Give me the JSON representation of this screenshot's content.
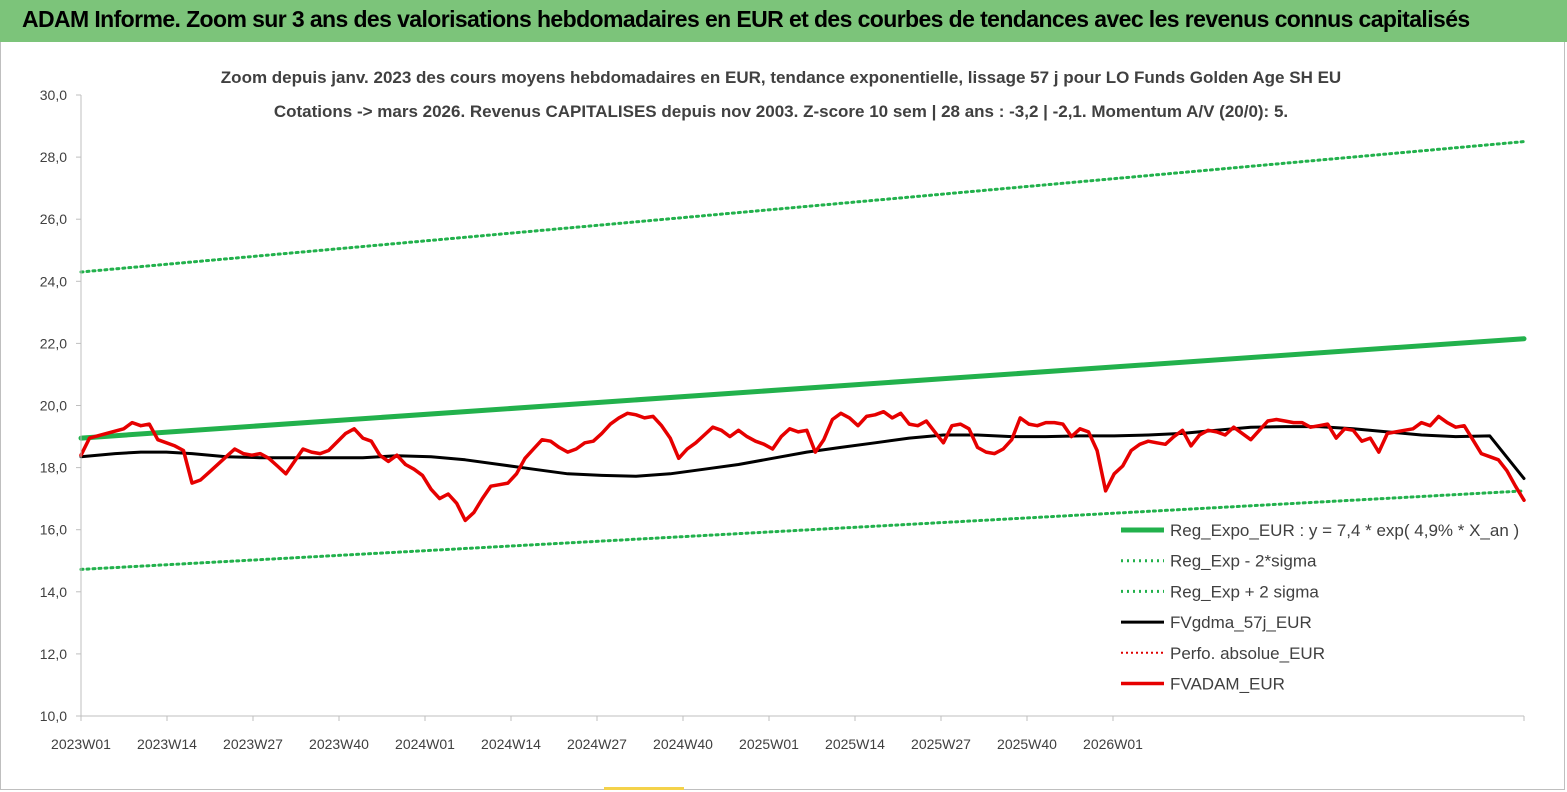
{
  "header": {
    "title": "ADAM Informe. Zoom sur 3 ans des valorisations hebdomadaires en EUR et des courbes de tendances avec les revenus connus capitalisés"
  },
  "colors": {
    "header_bg": "#7cc47a",
    "trend": "#22b14c",
    "band": "#22b14c",
    "gdma": "#000000",
    "perfo": "#e00000",
    "price": "#e60000"
  },
  "chart_data": {
    "type": "line",
    "title": "Zoom depuis janv. 2023 des cours moyens hebdomadaires en EUR, tendance exponentielle, lissage 57 j pour LO Funds Golden Age SH EU",
    "subtitle": "Cotations -> mars 2026. Revenus CAPITALISES depuis nov 2003. Z-score 10 sem | 28 ans : -3,2 | -2,1. Momentum A/V (20/0): 5.",
    "xlabel": "",
    "ylabel": "",
    "ylim": [
      10,
      30
    ],
    "xlim": [
      1,
      170
    ],
    "y_ticks": [
      "10,0",
      "12,0",
      "14,0",
      "16,0",
      "18,0",
      "20,0",
      "22,0",
      "24,0",
      "26,0",
      "28,0",
      "30,0"
    ],
    "x_tick_labels": [
      "2023W01",
      "2023W14",
      "2023W27",
      "2023W40",
      "2024W01",
      "2024W14",
      "2024W27",
      "2024W40",
      "2025W01",
      "2025W14",
      "2025W27",
      "2025W40",
      "2026W01"
    ],
    "legend_position": "bottom-right",
    "grid": false,
    "series": [
      {
        "name": "Reg_Expo_EUR : y = 7,4 * exp( 4,9% *  X_an )",
        "style": "solid-thick",
        "points": [
          [
            1,
            18.95
          ],
          [
            170,
            22.15
          ]
        ]
      },
      {
        "name": "Reg_Exp - 2*sigma",
        "style": "dotted",
        "points": [
          [
            1,
            14.72
          ],
          [
            170,
            17.25
          ]
        ]
      },
      {
        "name": "Reg_Exp + 2 sigma",
        "style": "dotted",
        "points": [
          [
            1,
            24.3
          ],
          [
            170,
            28.5
          ]
        ]
      },
      {
        "name": "FVgdma_57j_EUR",
        "style": "solid",
        "points": [
          [
            1,
            18.35
          ],
          [
            5,
            18.45
          ],
          [
            8,
            18.5
          ],
          [
            11,
            18.5
          ],
          [
            14,
            18.45
          ],
          [
            18,
            18.35
          ],
          [
            22,
            18.32
          ],
          [
            26,
            18.32
          ],
          [
            30,
            18.32
          ],
          [
            34,
            18.32
          ],
          [
            38,
            18.38
          ],
          [
            42,
            18.35
          ],
          [
            46,
            18.25
          ],
          [
            50,
            18.1
          ],
          [
            54,
            17.95
          ],
          [
            58,
            17.8
          ],
          [
            62,
            17.75
          ],
          [
            66,
            17.72
          ],
          [
            70,
            17.8
          ],
          [
            74,
            17.95
          ],
          [
            78,
            18.1
          ],
          [
            82,
            18.3
          ],
          [
            86,
            18.5
          ],
          [
            90,
            18.65
          ],
          [
            94,
            18.8
          ],
          [
            98,
            18.95
          ],
          [
            102,
            19.05
          ],
          [
            106,
            19.05
          ],
          [
            110,
            19.0
          ],
          [
            114,
            19.0
          ],
          [
            118,
            19.02
          ],
          [
            122,
            19.02
          ],
          [
            126,
            19.05
          ],
          [
            130,
            19.1
          ],
          [
            134,
            19.2
          ],
          [
            138,
            19.3
          ],
          [
            142,
            19.32
          ],
          [
            146,
            19.32
          ],
          [
            150,
            19.25
          ],
          [
            154,
            19.15
          ],
          [
            158,
            19.05
          ],
          [
            162,
            19.0
          ],
          [
            166,
            19.02
          ],
          [
            170,
            17.65
          ]
        ]
      },
      {
        "name": "Perfo. absolue_EUR",
        "style": "dotted",
        "points": []
      },
      {
        "name": "FVADAM_EUR",
        "style": "solid-thick",
        "points": [
          [
            1,
            18.4
          ],
          [
            2,
            18.95
          ],
          [
            4,
            19.1
          ],
          [
            6,
            19.25
          ],
          [
            7,
            19.45
          ],
          [
            8,
            19.35
          ],
          [
            9,
            19.4
          ],
          [
            10,
            18.9
          ],
          [
            12,
            18.7
          ],
          [
            13,
            18.55
          ],
          [
            14,
            17.5
          ],
          [
            15,
            17.6
          ],
          [
            16,
            17.85
          ],
          [
            18,
            18.35
          ],
          [
            19,
            18.6
          ],
          [
            20,
            18.45
          ],
          [
            21,
            18.4
          ],
          [
            22,
            18.45
          ],
          [
            23,
            18.3
          ],
          [
            24,
            18.05
          ],
          [
            25,
            17.8
          ],
          [
            26,
            18.2
          ],
          [
            27,
            18.6
          ],
          [
            28,
            18.5
          ],
          [
            29,
            18.45
          ],
          [
            30,
            18.55
          ],
          [
            32,
            19.1
          ],
          [
            33,
            19.25
          ],
          [
            34,
            18.95
          ],
          [
            35,
            18.85
          ],
          [
            36,
            18.4
          ],
          [
            37,
            18.2
          ],
          [
            38,
            18.4
          ],
          [
            39,
            18.1
          ],
          [
            40,
            17.95
          ],
          [
            41,
            17.75
          ],
          [
            42,
            17.3
          ],
          [
            43,
            17.0
          ],
          [
            44,
            17.15
          ],
          [
            45,
            16.85
          ],
          [
            46,
            16.3
          ],
          [
            47,
            16.55
          ],
          [
            48,
            17.0
          ],
          [
            49,
            17.4
          ],
          [
            50,
            17.45
          ],
          [
            51,
            17.5
          ],
          [
            52,
            17.8
          ],
          [
            53,
            18.3
          ],
          [
            54,
            18.6
          ],
          [
            55,
            18.9
          ],
          [
            56,
            18.85
          ],
          [
            57,
            18.65
          ],
          [
            58,
            18.5
          ],
          [
            59,
            18.6
          ],
          [
            60,
            18.8
          ],
          [
            61,
            18.85
          ],
          [
            62,
            19.1
          ],
          [
            63,
            19.4
          ],
          [
            64,
            19.6
          ],
          [
            65,
            19.75
          ],
          [
            66,
            19.7
          ],
          [
            67,
            19.6
          ],
          [
            68,
            19.65
          ],
          [
            69,
            19.35
          ],
          [
            70,
            18.95
          ],
          [
            71,
            18.3
          ],
          [
            72,
            18.6
          ],
          [
            73,
            18.8
          ],
          [
            74,
            19.05
          ],
          [
            75,
            19.3
          ],
          [
            76,
            19.2
          ],
          [
            77,
            19.0
          ],
          [
            78,
            19.2
          ],
          [
            79,
            19.0
          ],
          [
            80,
            18.85
          ],
          [
            81,
            18.75
          ],
          [
            82,
            18.6
          ],
          [
            83,
            19.0
          ],
          [
            84,
            19.25
          ],
          [
            85,
            19.15
          ],
          [
            86,
            19.2
          ],
          [
            87,
            18.5
          ],
          [
            88,
            18.9
          ],
          [
            89,
            19.55
          ],
          [
            90,
            19.75
          ],
          [
            91,
            19.6
          ],
          [
            92,
            19.35
          ],
          [
            93,
            19.65
          ],
          [
            94,
            19.7
          ],
          [
            95,
            19.8
          ],
          [
            96,
            19.6
          ],
          [
            97,
            19.75
          ],
          [
            98,
            19.4
          ],
          [
            99,
            19.35
          ],
          [
            100,
            19.5
          ],
          [
            101,
            19.15
          ],
          [
            102,
            18.8
          ],
          [
            103,
            19.35
          ],
          [
            104,
            19.4
          ],
          [
            105,
            19.25
          ],
          [
            106,
            18.65
          ],
          [
            107,
            18.5
          ],
          [
            108,
            18.45
          ],
          [
            109,
            18.6
          ],
          [
            110,
            18.9
          ],
          [
            111,
            19.6
          ],
          [
            112,
            19.4
          ],
          [
            113,
            19.35
          ],
          [
            114,
            19.45
          ],
          [
            115,
            19.45
          ],
          [
            116,
            19.4
          ],
          [
            117,
            19.0
          ],
          [
            118,
            19.25
          ],
          [
            119,
            19.15
          ],
          [
            120,
            18.55
          ],
          [
            121,
            17.25
          ],
          [
            122,
            17.8
          ],
          [
            123,
            18.05
          ],
          [
            124,
            18.55
          ],
          [
            125,
            18.75
          ],
          [
            126,
            18.85
          ],
          [
            127,
            18.8
          ],
          [
            128,
            18.75
          ],
          [
            129,
            19.0
          ],
          [
            130,
            19.2
          ],
          [
            131,
            18.7
          ],
          [
            132,
            19.05
          ],
          [
            133,
            19.2
          ],
          [
            134,
            19.15
          ],
          [
            135,
            19.05
          ],
          [
            136,
            19.3
          ],
          [
            137,
            19.1
          ],
          [
            138,
            18.9
          ],
          [
            139,
            19.2
          ],
          [
            140,
            19.5
          ],
          [
            141,
            19.55
          ],
          [
            142,
            19.5
          ],
          [
            143,
            19.45
          ],
          [
            144,
            19.45
          ],
          [
            145,
            19.3
          ],
          [
            146,
            19.35
          ],
          [
            147,
            19.4
          ],
          [
            148,
            18.95
          ],
          [
            149,
            19.25
          ],
          [
            150,
            19.2
          ],
          [
            151,
            18.85
          ],
          [
            152,
            18.95
          ],
          [
            153,
            18.5
          ],
          [
            154,
            19.1
          ],
          [
            155,
            19.15
          ],
          [
            156,
            19.2
          ],
          [
            157,
            19.25
          ],
          [
            158,
            19.45
          ],
          [
            159,
            19.35
          ],
          [
            160,
            19.65
          ],
          [
            161,
            19.45
          ],
          [
            162,
            19.3
          ],
          [
            163,
            19.35
          ],
          [
            164,
            18.9
          ],
          [
            165,
            18.45
          ],
          [
            166,
            18.35
          ],
          [
            167,
            18.25
          ],
          [
            168,
            17.9
          ],
          [
            169,
            17.4
          ],
          [
            170,
            16.95
          ]
        ]
      }
    ]
  }
}
